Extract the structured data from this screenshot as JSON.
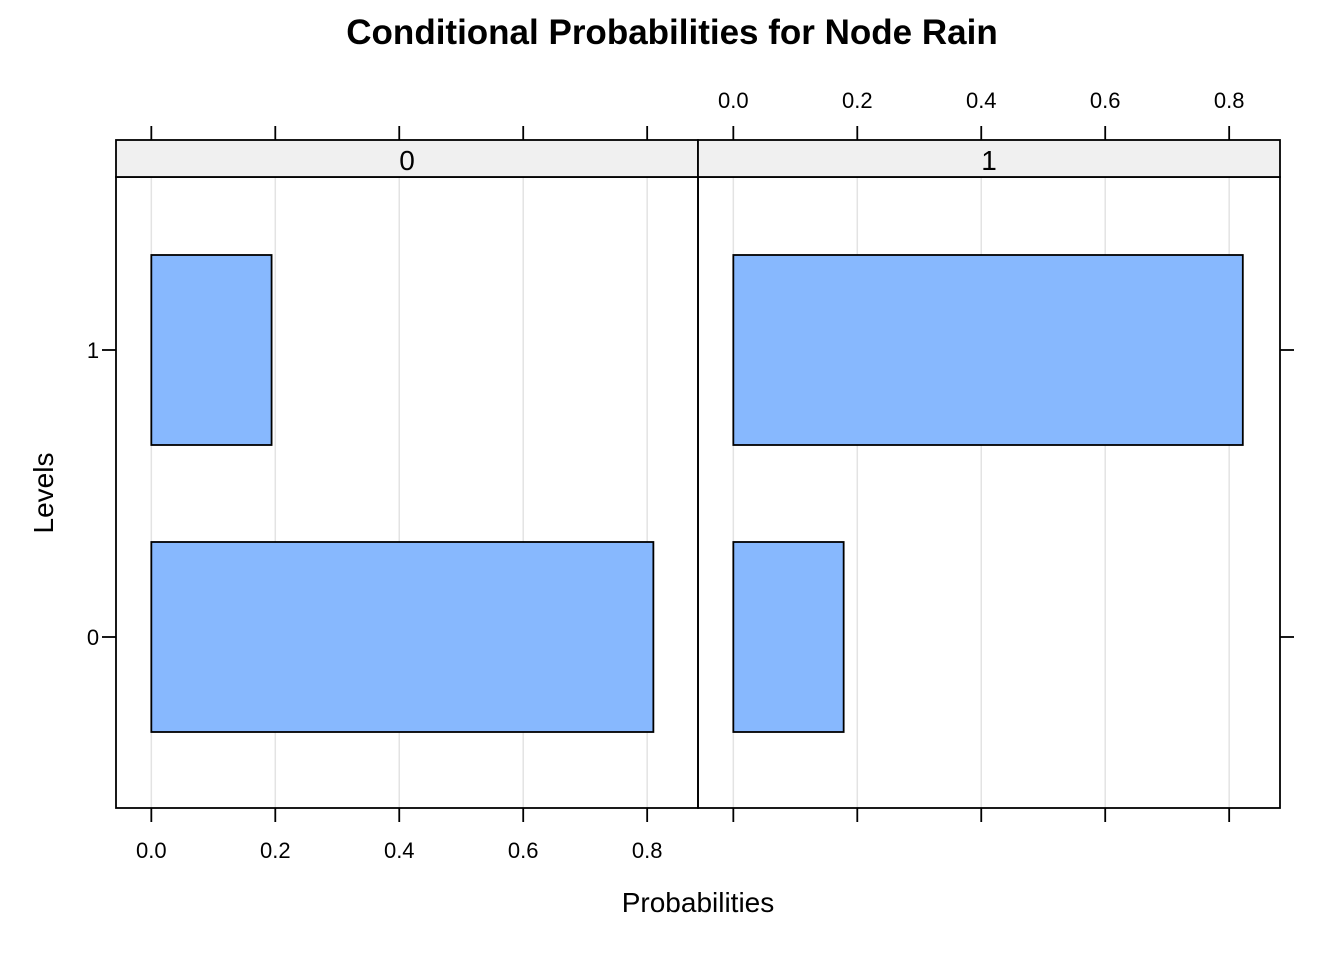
{
  "chart_data": {
    "type": "bar",
    "orientation": "horizontal",
    "title": "Conditional Probabilities for Node Rain",
    "xlabel": "Probabilities",
    "ylabel": "Levels",
    "categories": [
      "0",
      "1"
    ],
    "xlim": [
      -0.057,
      0.882
    ],
    "xticks": [
      0.0,
      0.2,
      0.4,
      0.6,
      0.8
    ],
    "xtick_labels": [
      "0.0",
      "0.2",
      "0.4",
      "0.6",
      "0.8"
    ],
    "grid": true,
    "bar_color": "#87b8fe",
    "panels": [
      {
        "strip": "0",
        "values": [
          0.81,
          0.194
        ]
      },
      {
        "strip": "1",
        "values": [
          0.178,
          0.822
        ]
      }
    ]
  }
}
